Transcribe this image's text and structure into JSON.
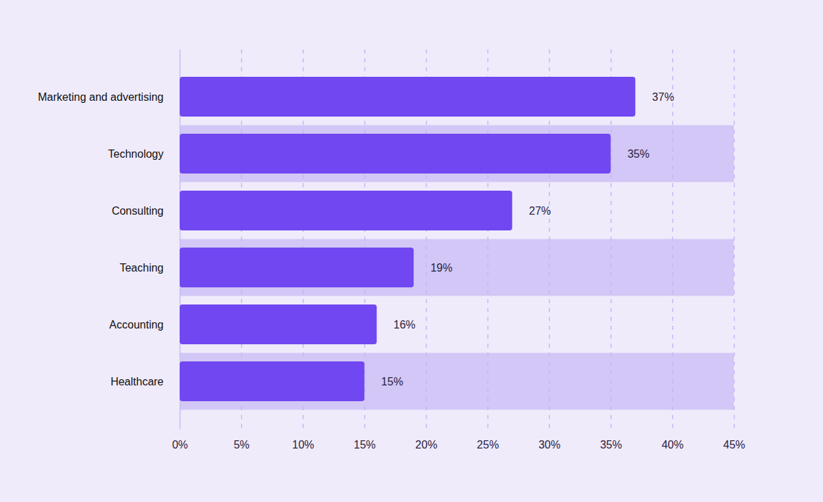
{
  "chart_data": {
    "type": "bar",
    "orientation": "horizontal",
    "categories": [
      "Marketing and advertising",
      "Technology",
      "Consulting",
      "Teaching",
      "Accounting",
      "Healthcare"
    ],
    "values": [
      37,
      35,
      27,
      19,
      16,
      15
    ],
    "value_labels": [
      "37%",
      "35%",
      "27%",
      "19%",
      "16%",
      "15%"
    ],
    "color": "#7047f0",
    "xlim": [
      0,
      45
    ],
    "xticks": [
      {
        "value": 0,
        "label": "0%"
      },
      {
        "value": 5,
        "label": "5%"
      },
      {
        "value": 10,
        "label": "10%"
      },
      {
        "value": 15,
        "label": "15%"
      },
      {
        "value": 20,
        "label": "20%"
      },
      {
        "value": 25,
        "label": "25%"
      },
      {
        "value": 30,
        "label": "30%"
      },
      {
        "value": 35,
        "label": "35%"
      },
      {
        "value": 40,
        "label": "40%"
      },
      {
        "value": 45,
        "label": "45%"
      }
    ],
    "grid": true,
    "data_labels": true
  }
}
